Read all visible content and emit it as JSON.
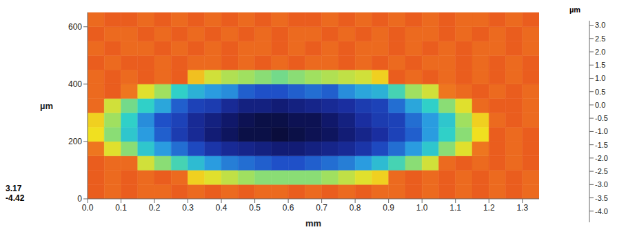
{
  "chart_data": {
    "type": "heatmap",
    "x_label": "mm",
    "y_label": "µm",
    "xlim": [
      0,
      1.35
    ],
    "xticks": [
      {
        "value": 0,
        "label": "0.0"
      },
      0.1,
      0.2,
      0.3,
      0.4,
      0.5,
      0.6,
      0.7,
      0.8,
      0.9,
      {
        "value": 1,
        "label": "1.0"
      },
      1.1,
      1.2,
      1.3
    ],
    "ylim": [
      0,
      650
    ],
    "yticks": [
      0,
      200,
      400,
      600
    ],
    "x_edges": [
      0,
      0.05,
      0.1,
      0.15,
      0.2,
      0.25,
      0.3,
      0.35,
      0.4,
      0.45,
      0.5,
      0.55,
      0.6,
      0.65,
      0.7,
      0.75,
      0.8,
      0.85,
      0.9,
      0.95,
      1,
      1.05,
      1.1,
      1.15,
      1.2,
      1.25,
      1.3,
      1.35
    ],
    "y_edges": [
      0,
      50,
      100,
      150,
      200,
      250,
      300,
      350,
      400,
      450,
      500,
      550,
      600,
      650
    ],
    "z": [
      [
        0.9,
        0.8,
        0.9,
        0.8,
        0.8,
        0.9,
        0.8,
        0.9,
        0.8,
        0.9,
        0.8,
        0.8,
        0.9,
        0.8,
        0.9,
        0.8,
        0.9,
        0.8,
        0.8,
        0.9,
        0.8,
        0.9,
        0.8,
        0.9,
        0.8,
        0.9,
        0.8
      ],
      [
        0.9,
        0.8,
        0.9,
        0.8,
        0.9,
        0.8,
        0.1,
        -0.1,
        -0.3,
        -0.5,
        -0.6,
        -0.6,
        -0.6,
        -0.6,
        -0.5,
        -0.3,
        -0.1,
        0.1,
        0.8,
        0.9,
        0.8,
        0.9,
        0.8,
        0.9,
        0.8,
        0.9,
        0.8
      ],
      [
        0.9,
        0.8,
        0.8,
        -0.2,
        -0.6,
        -0.9,
        -1.2,
        -1.5,
        -1.7,
        -1.8,
        -1.9,
        -2.0,
        -2.0,
        -1.9,
        -1.8,
        -1.7,
        -1.5,
        -1.2,
        -0.9,
        -0.6,
        -0.2,
        0.8,
        0.9,
        0.8,
        0.9,
        0.8,
        0.9
      ],
      [
        0.7,
        -0.1,
        -0.6,
        -1.1,
        -1.5,
        -1.8,
        -2.1,
        -2.4,
        -2.6,
        -2.7,
        -2.8,
        -2.9,
        -2.9,
        -2.8,
        -2.7,
        -2.6,
        -2.4,
        -2.1,
        -1.8,
        -1.5,
        -1.1,
        -0.6,
        -0.1,
        0.7,
        0.9,
        0.8,
        0.9
      ],
      [
        0.0,
        -0.6,
        -1.1,
        -1.5,
        -1.9,
        -2.3,
        -2.6,
        -2.9,
        -3.1,
        -3.3,
        -3.3,
        -3.4,
        -3.3,
        -3.2,
        -3.1,
        -2.9,
        -2.7,
        -2.5,
        -2.2,
        -1.9,
        -1.5,
        -1.0,
        -0.6,
        0.0,
        0.9,
        0.8,
        0.9
      ],
      [
        0.1,
        -0.5,
        -1.0,
        -1.6,
        -2.0,
        -2.2,
        -2.6,
        -2.8,
        -3.0,
        -3.2,
        -3.3,
        -3.3,
        -3.2,
        -3.2,
        -3.0,
        -2.8,
        -2.5,
        -2.3,
        -2.2,
        -1.8,
        -1.5,
        -1.1,
        -0.5,
        0.1,
        0.8,
        0.9,
        0.8
      ],
      [
        0.8,
        -0.2,
        -0.7,
        -1.0,
        -1.4,
        -1.9,
        -2.2,
        -2.3,
        -2.6,
        -2.8,
        -2.8,
        -2.9,
        -2.8,
        -2.7,
        -2.6,
        -2.5,
        -2.3,
        -2.2,
        -1.8,
        -1.4,
        -1.0,
        -0.6,
        -0.1,
        0.8,
        0.9,
        0.9,
        0.8
      ],
      [
        0.8,
        0.9,
        0.7,
        -0.1,
        -0.5,
        -1.0,
        -1.3,
        -1.5,
        -1.6,
        -1.9,
        -2.0,
        -2.0,
        -1.9,
        -1.8,
        -1.9,
        -1.6,
        -1.4,
        -1.3,
        -0.9,
        -0.5,
        -0.2,
        0.7,
        0.8,
        0.9,
        0.8,
        0.9,
        0.8
      ],
      [
        0.8,
        0.9,
        0.8,
        0.9,
        0.8,
        0.9,
        0.2,
        -0.2,
        -0.4,
        -0.5,
        -0.6,
        -0.7,
        -0.6,
        -0.5,
        -0.4,
        -0.3,
        -0.2,
        0.1,
        0.9,
        0.8,
        0.9,
        0.8,
        0.9,
        0.8,
        0.9,
        0.8,
        0.9
      ],
      [
        0.9,
        0.8,
        0.9,
        0.9,
        0.8,
        0.9,
        0.8,
        0.8,
        0.9,
        0.8,
        0.9,
        0.8,
        0.9,
        0.8,
        0.8,
        0.9,
        0.8,
        0.9,
        0.8,
        0.9,
        0.8,
        0.8,
        0.9,
        0.8,
        0.9,
        0.8,
        0.9
      ],
      [
        0.8,
        0.9,
        0.8,
        0.8,
        0.9,
        0.8,
        0.9,
        0.8,
        0.9,
        0.8,
        0.8,
        0.9,
        0.8,
        0.9,
        0.8,
        0.9,
        0.8,
        0.8,
        0.9,
        0.8,
        0.9,
        0.8,
        0.9,
        0.8,
        0.8,
        0.9,
        0.8
      ],
      [
        0.9,
        0.8,
        0.8,
        0.9,
        0.8,
        0.9,
        0.8,
        0.9,
        0.8,
        0.9,
        0.8,
        0.9,
        0.8,
        0.8,
        0.9,
        0.8,
        0.9,
        0.8,
        0.9,
        0.8,
        0.8,
        0.9,
        0.8,
        0.9,
        0.8,
        0.9,
        0.8
      ],
      [
        0.8,
        0.9,
        0.9,
        0.8,
        0.9,
        0.8,
        0.9,
        0.8,
        0.9,
        0.8,
        0.9,
        0.8,
        0.9,
        0.9,
        0.8,
        0.9,
        0.8,
        0.9,
        0.8,
        0.9,
        0.8,
        0.9,
        0.8,
        0.8,
        0.9,
        0.8,
        0.9
      ]
    ],
    "colorbar": {
      "label": "µm",
      "range": [
        -4.42,
        3.17
      ],
      "ticks": [
        {
          "value": 3,
          "label": "3.0"
        },
        2.5,
        {
          "value": 2,
          "label": "2.0"
        },
        1.5,
        {
          "value": 1,
          "label": "1.0"
        },
        0.5,
        {
          "value": 0,
          "label": "0.0"
        },
        -0.5,
        {
          "value": -1,
          "label": "-1.0"
        },
        -1.5,
        {
          "value": -2,
          "label": "-2.0"
        },
        -2.5,
        {
          "value": -3,
          "label": "-3.0"
        },
        -3.5,
        {
          "value": -4,
          "label": "-4.0"
        }
      ]
    }
  }
}
